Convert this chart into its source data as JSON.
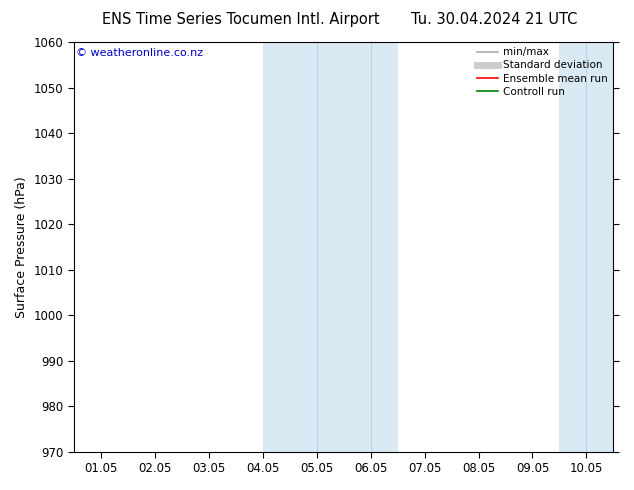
{
  "title_left": "ENS Time Series Tocumen Intl. Airport",
  "title_right": "Tu. 30.04.2024 21 UTC",
  "ylabel": "Surface Pressure (hPa)",
  "ylim": [
    970,
    1060
  ],
  "yticks": [
    970,
    980,
    990,
    1000,
    1010,
    1020,
    1030,
    1040,
    1050,
    1060
  ],
  "xtick_labels": [
    "01.05",
    "02.05",
    "03.05",
    "04.05",
    "05.05",
    "06.05",
    "07.05",
    "08.05",
    "09.05",
    "10.05"
  ],
  "xtick_positions": [
    0,
    1,
    2,
    3,
    4,
    5,
    6,
    7,
    8,
    9
  ],
  "xlim": [
    -0.5,
    9.5
  ],
  "shade_regions": [
    {
      "xmin": 3.0,
      "xmax": 5.5,
      "color": "#daeaf5"
    },
    {
      "xmin": 8.5,
      "xmax": 9.5,
      "color": "#daeaf5"
    }
  ],
  "shade_inner_lines": [
    {
      "x": 4.0,
      "color": "#b8d4e8"
    },
    {
      "x": 5.0,
      "color": "#b8d4e8"
    },
    {
      "x": 9.0,
      "color": "#b8d4e8"
    }
  ],
  "legend_entries": [
    {
      "label": "min/max",
      "color": "#aaaaaa",
      "lw": 1.2
    },
    {
      "label": "Standard deviation",
      "color": "#cccccc",
      "lw": 5
    },
    {
      "label": "Ensemble mean run",
      "color": "red",
      "lw": 1.2
    },
    {
      "label": "Controll run",
      "color": "green",
      "lw": 1.2
    }
  ],
  "watermark": "© weatheronline.co.nz",
  "watermark_color": "#0000cc",
  "bg_color": "#ffffff",
  "plot_bg_color": "#ffffff",
  "border_color": "#000000",
  "title_fontsize": 10.5,
  "ylabel_fontsize": 9,
  "tick_fontsize": 8.5
}
